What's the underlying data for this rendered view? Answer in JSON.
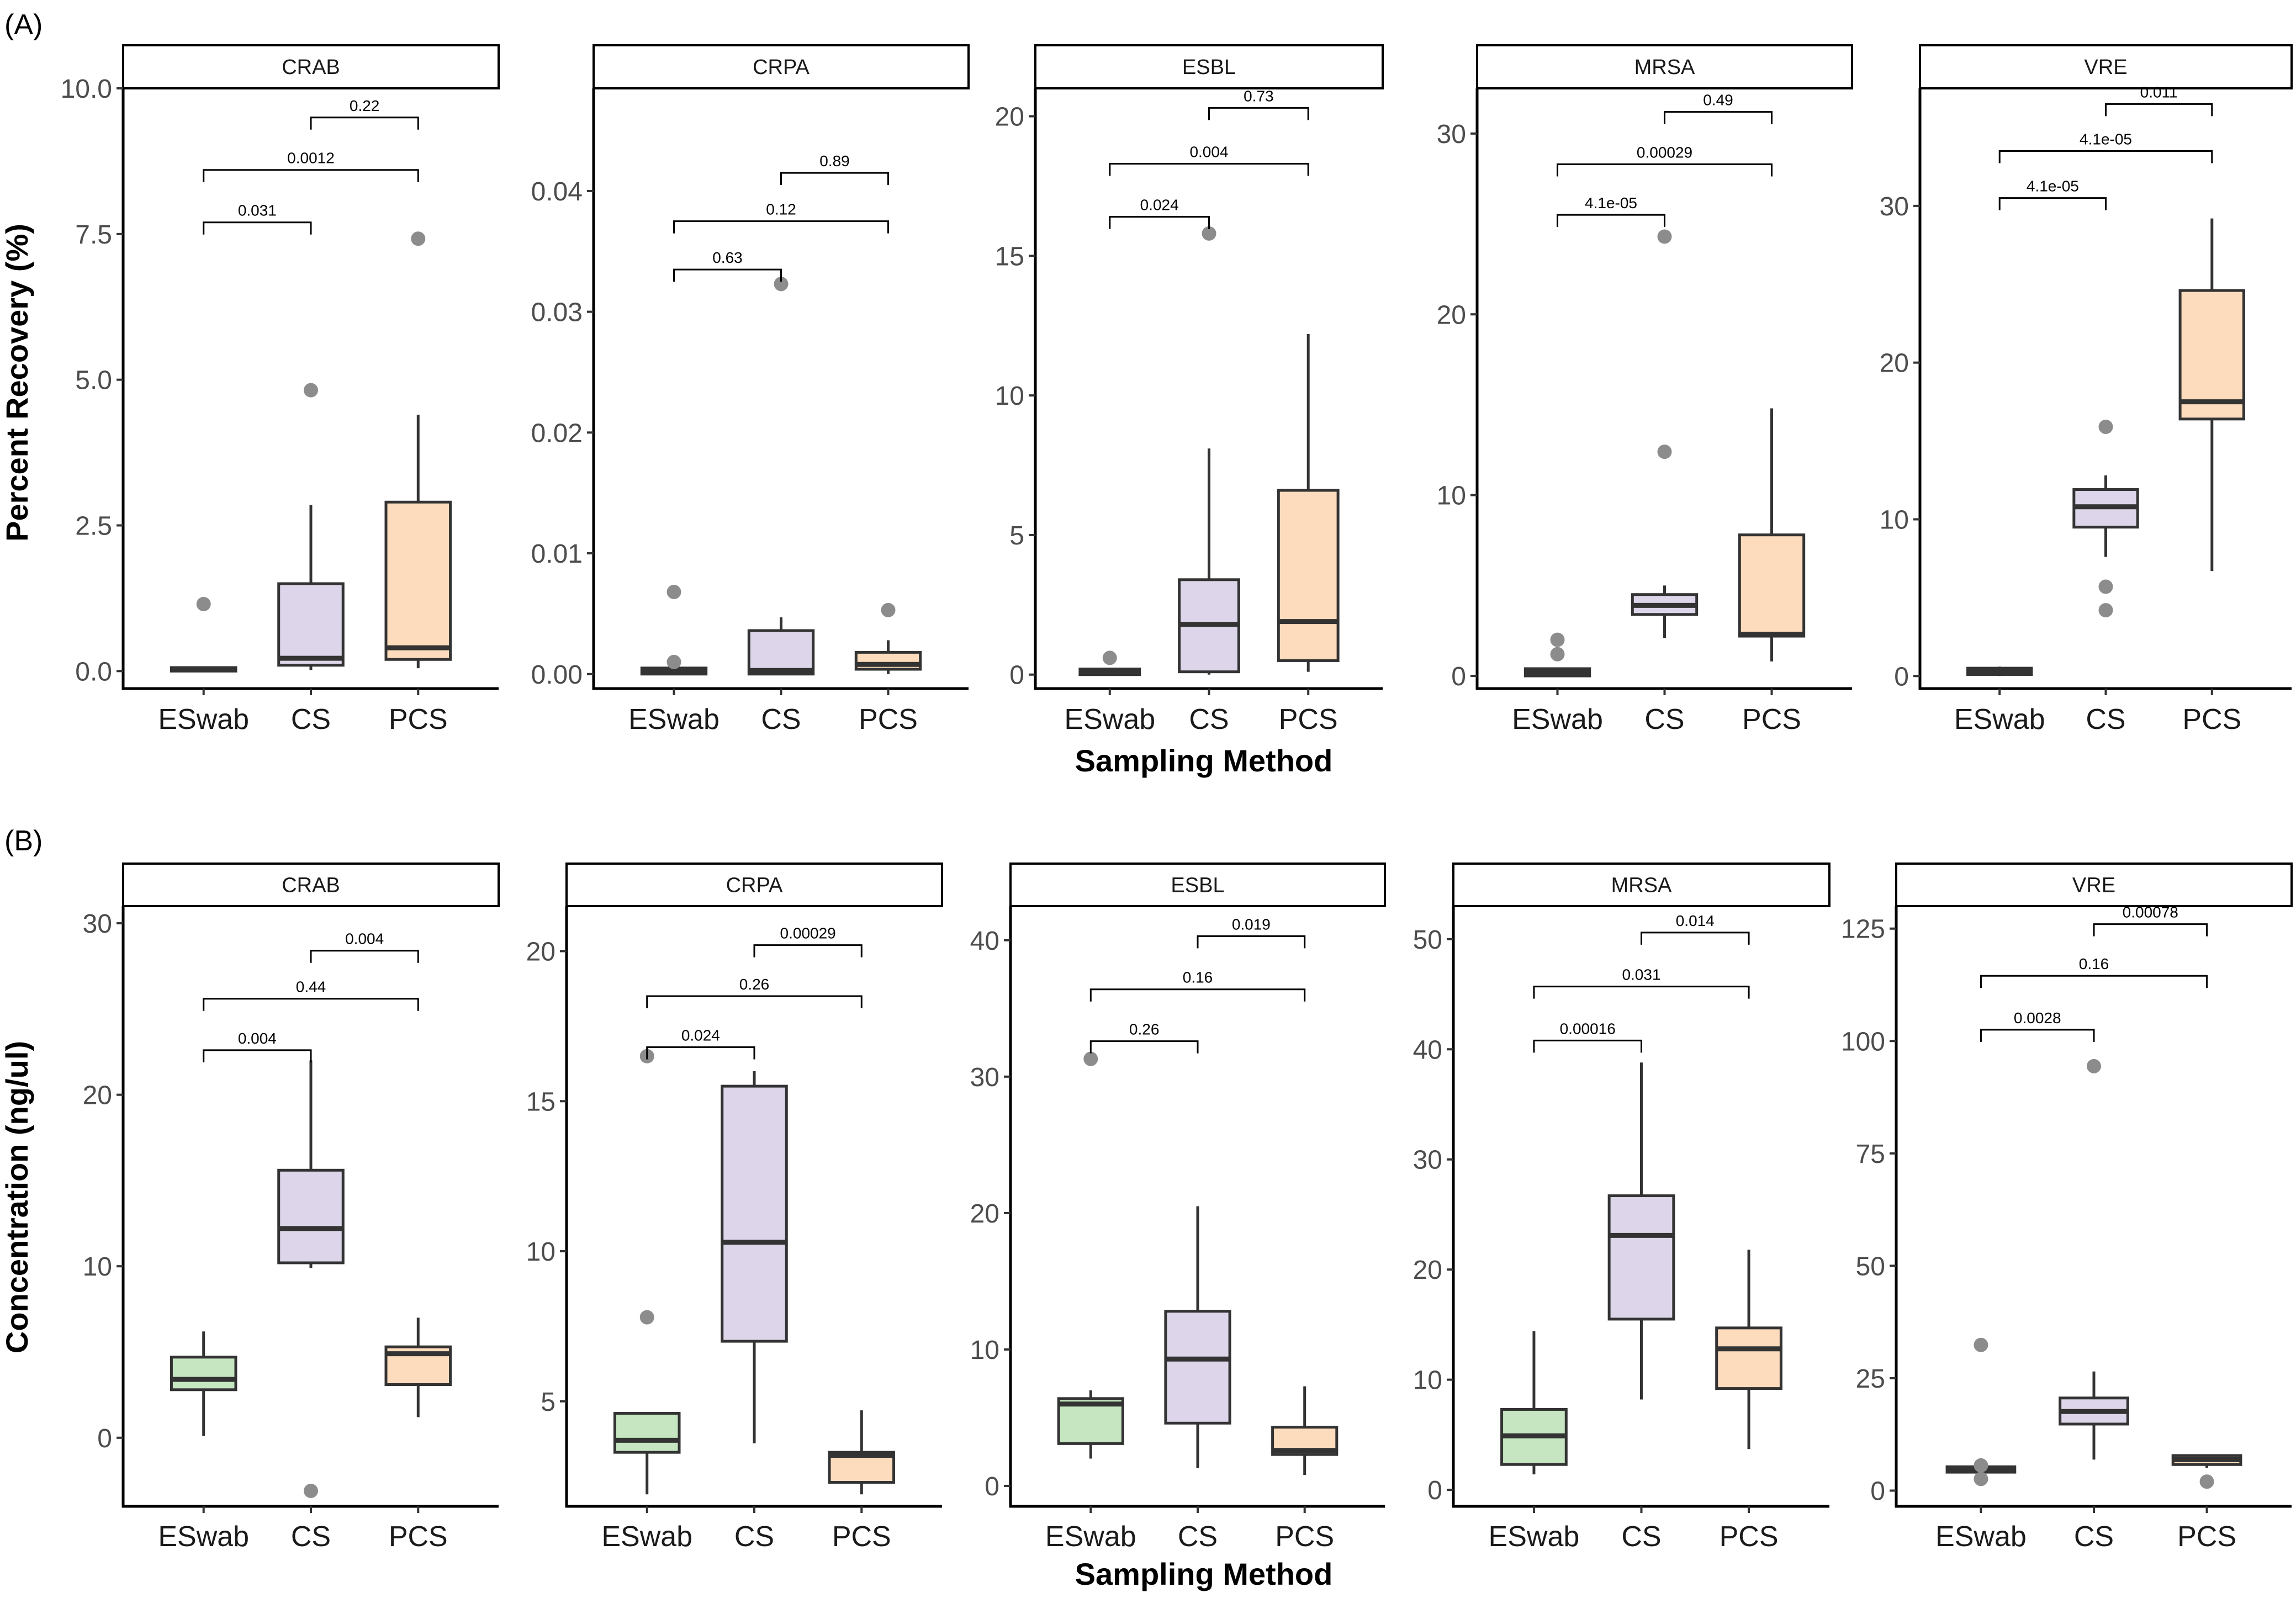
{
  "figure": {
    "sections": [
      {
        "letter": "(A)",
        "ylabel": "Percent Recovery (%)",
        "xlabel": "Sampling Method"
      },
      {
        "letter": "(B)",
        "ylabel": "Concentration (ng/ul)",
        "xlabel": "Sampling Method"
      }
    ],
    "colors": {
      "ESwab": "#c5e6c1",
      "CS": "#ddd6ea",
      "PCS": "#fddcbd",
      "outlier": "#8c8c8c",
      "line": "#333333"
    }
  },
  "chart_data": [
    {
      "type": "box",
      "section": "A",
      "facet": "CRAB",
      "categories": [
        "ESwab",
        "CS",
        "PCS"
      ],
      "ylim": [
        -0.3,
        10.0
      ],
      "yticks": [
        0.0,
        2.5,
        5.0,
        7.5,
        10.0
      ],
      "ytick_labels": [
        "0.0",
        "2.5",
        "5.0",
        "7.5",
        "10.0"
      ],
      "boxes": [
        {
          "q1": 0.0,
          "median": 0.03,
          "q3": 0.06,
          "lo": 0.0,
          "hi": 0.06,
          "outliers": [
            1.15
          ]
        },
        {
          "q1": 0.1,
          "median": 0.22,
          "q3": 1.5,
          "lo": 0.02,
          "hi": 2.85,
          "outliers": [
            4.82
          ]
        },
        {
          "q1": 0.2,
          "median": 0.4,
          "q3": 2.9,
          "lo": 0.05,
          "hi": 4.4,
          "outliers": [
            7.42
          ]
        }
      ],
      "comparisons": [
        {
          "from": 0,
          "to": 1,
          "label": "0.031",
          "y": 7.7
        },
        {
          "from": 0,
          "to": 2,
          "label": "0.0012",
          "y": 8.6
        },
        {
          "from": 1,
          "to": 2,
          "label": "0.22",
          "y": 9.5
        }
      ]
    },
    {
      "type": "box",
      "section": "A",
      "facet": "CRPA",
      "categories": [
        "ESwab",
        "CS",
        "PCS"
      ],
      "ylim": [
        -0.0012,
        0.0485
      ],
      "yticks": [
        0.0,
        0.01,
        0.02,
        0.03,
        0.04
      ],
      "ytick_labels": [
        "0.00",
        "0.01",
        "0.02",
        "0.03",
        "0.04"
      ],
      "boxes": [
        {
          "q1": 0.0,
          "median": 0.0002,
          "q3": 0.0005,
          "lo": 0.0,
          "hi": 0.0005,
          "outliers": [
            0.0068,
            0.001
          ]
        },
        {
          "q1": 0.0,
          "median": 0.0003,
          "q3": 0.0036,
          "lo": 0.0,
          "hi": 0.0047,
          "outliers": [
            0.0323
          ]
        },
        {
          "q1": 0.0004,
          "median": 0.0008,
          "q3": 0.0018,
          "lo": 0.0,
          "hi": 0.0028,
          "outliers": [
            0.0053
          ]
        }
      ],
      "comparisons": [
        {
          "from": 0,
          "to": 1,
          "label": "0.63",
          "y": 0.0335
        },
        {
          "from": 0,
          "to": 2,
          "label": "0.12",
          "y": 0.0375
        },
        {
          "from": 1,
          "to": 2,
          "label": "0.89",
          "y": 0.0415
        }
      ]
    },
    {
      "type": "box",
      "section": "A",
      "facet": "ESBL",
      "categories": [
        "ESwab",
        "CS",
        "PCS"
      ],
      "ylim": [
        -0.5,
        21.0
      ],
      "yticks": [
        0,
        5,
        10,
        15,
        20
      ],
      "ytick_labels": [
        "0",
        "5",
        "10",
        "15",
        "20"
      ],
      "boxes": [
        {
          "q1": 0.0,
          "median": 0.1,
          "q3": 0.2,
          "lo": 0.0,
          "hi": 0.2,
          "outliers": [
            0.6
          ]
        },
        {
          "q1": 0.1,
          "median": 1.8,
          "q3": 3.4,
          "lo": 0.0,
          "hi": 8.1,
          "outliers": [
            15.8
          ]
        },
        {
          "q1": 0.5,
          "median": 1.9,
          "q3": 6.6,
          "lo": 0.1,
          "hi": 12.2,
          "outliers": []
        }
      ],
      "comparisons": [
        {
          "from": 0,
          "to": 1,
          "label": "0.024",
          "y": 16.4
        },
        {
          "from": 0,
          "to": 2,
          "label": "0.004",
          "y": 18.3
        },
        {
          "from": 1,
          "to": 2,
          "label": "0.73",
          "y": 20.3
        }
      ]
    },
    {
      "type": "box",
      "section": "A",
      "facet": "MRSA",
      "categories": [
        "ESwab",
        "CS",
        "PCS"
      ],
      "ylim": [
        -0.7,
        32.5
      ],
      "yticks": [
        0,
        10,
        20,
        30
      ],
      "ytick_labels": [
        "0",
        "10",
        "20",
        "30"
      ],
      "boxes": [
        {
          "q1": 0.0,
          "median": 0.2,
          "q3": 0.4,
          "lo": 0.0,
          "hi": 0.4,
          "outliers": [
            2.0,
            1.2
          ]
        },
        {
          "q1": 3.4,
          "median": 3.9,
          "q3": 4.5,
          "lo": 2.1,
          "hi": 5.0,
          "outliers": [
            24.3,
            12.4
          ]
        },
        {
          "q1": 2.2,
          "median": 2.3,
          "q3": 7.8,
          "lo": 0.8,
          "hi": 14.8,
          "outliers": []
        }
      ],
      "comparisons": [
        {
          "from": 0,
          "to": 1,
          "label": "4.1e-05",
          "y": 25.5
        },
        {
          "from": 0,
          "to": 2,
          "label": "0.00029",
          "y": 28.3
        },
        {
          "from": 1,
          "to": 2,
          "label": "0.49",
          "y": 31.2
        }
      ]
    },
    {
      "type": "box",
      "section": "A",
      "facet": "VRE",
      "categories": [
        "ESwab",
        "CS",
        "PCS"
      ],
      "ylim": [
        -0.8,
        37.5
      ],
      "yticks": [
        0,
        10,
        20,
        30
      ],
      "ytick_labels": [
        "0",
        "10",
        "20",
        "30"
      ],
      "boxes": [
        {
          "q1": 0.1,
          "median": 0.3,
          "q3": 0.5,
          "lo": 0.0,
          "hi": 0.6,
          "outliers": []
        },
        {
          "q1": 9.5,
          "median": 10.8,
          "q3": 11.9,
          "lo": 7.6,
          "hi": 12.8,
          "outliers": [
            15.9,
            5.7,
            4.2
          ]
        },
        {
          "q1": 16.4,
          "median": 17.5,
          "q3": 24.6,
          "lo": 6.7,
          "hi": 29.2,
          "outliers": []
        }
      ],
      "comparisons": [
        {
          "from": 0,
          "to": 1,
          "label": "4.1e-05",
          "y": 30.5
        },
        {
          "from": 0,
          "to": 2,
          "label": "4.1e-05",
          "y": 33.5
        },
        {
          "from": 1,
          "to": 2,
          "label": "0.011",
          "y": 36.5
        }
      ]
    },
    {
      "type": "box",
      "section": "B",
      "facet": "CRAB",
      "categories": [
        "ESwab",
        "CS",
        "PCS"
      ],
      "ylim": [
        -4.0,
        31.0
      ],
      "yticks": [
        0,
        10,
        20,
        30
      ],
      "ytick_labels": [
        "0",
        "10",
        "20",
        "30"
      ],
      "boxes": [
        {
          "q1": 2.8,
          "median": 3.4,
          "q3": 4.7,
          "lo": 0.1,
          "hi": 6.2,
          "outliers": []
        },
        {
          "q1": 10.2,
          "median": 12.2,
          "q3": 15.6,
          "lo": 9.9,
          "hi": 22.0,
          "outliers": [
            -3.1
          ]
        },
        {
          "q1": 3.1,
          "median": 4.9,
          "q3": 5.3,
          "lo": 1.2,
          "hi": 7.0,
          "outliers": []
        }
      ],
      "comparisons": [
        {
          "from": 0,
          "to": 1,
          "label": "0.004",
          "y": 22.6
        },
        {
          "from": 0,
          "to": 2,
          "label": "0.44",
          "y": 25.6
        },
        {
          "from": 1,
          "to": 2,
          "label": "0.004",
          "y": 28.4
        }
      ]
    },
    {
      "type": "box",
      "section": "B",
      "facet": "CRPA",
      "categories": [
        "ESwab",
        "CS",
        "PCS"
      ],
      "ylim": [
        1.5,
        21.5
      ],
      "yticks": [
        5,
        10,
        15,
        20
      ],
      "ytick_labels": [
        "5",
        "10",
        "15",
        "20"
      ],
      "boxes": [
        {
          "q1": 3.3,
          "median": 3.7,
          "q3": 4.6,
          "lo": 1.9,
          "hi": 4.6,
          "outliers": [
            16.5,
            7.8
          ]
        },
        {
          "q1": 7.0,
          "median": 10.3,
          "q3": 15.5,
          "lo": 3.6,
          "hi": 16.0,
          "outliers": []
        },
        {
          "q1": 2.3,
          "median": 3.2,
          "q3": 3.3,
          "lo": 1.9,
          "hi": 4.7,
          "outliers": []
        }
      ],
      "comparisons": [
        {
          "from": 0,
          "to": 1,
          "label": "0.024",
          "y": 16.8
        },
        {
          "from": 0,
          "to": 2,
          "label": "0.26",
          "y": 18.5
        },
        {
          "from": 1,
          "to": 2,
          "label": "0.00029",
          "y": 20.2
        }
      ]
    },
    {
      "type": "box",
      "section": "B",
      "facet": "ESBL",
      "categories": [
        "ESwab",
        "CS",
        "PCS"
      ],
      "ylim": [
        -1.5,
        42.5
      ],
      "yticks": [
        0,
        10,
        20,
        30,
        40
      ],
      "ytick_labels": [
        "0",
        "10",
        "20",
        "30",
        "40"
      ],
      "boxes": [
        {
          "q1": 3.1,
          "median": 6.0,
          "q3": 6.4,
          "lo": 2.0,
          "hi": 7.0,
          "outliers": [
            31.3
          ]
        },
        {
          "q1": 4.6,
          "median": 9.3,
          "q3": 12.8,
          "lo": 1.3,
          "hi": 20.5,
          "outliers": []
        },
        {
          "q1": 2.3,
          "median": 2.6,
          "q3": 4.3,
          "lo": 0.8,
          "hi": 7.3,
          "outliers": []
        }
      ],
      "comparisons": [
        {
          "from": 0,
          "to": 1,
          "label": "0.26",
          "y": 32.6
        },
        {
          "from": 0,
          "to": 2,
          "label": "0.16",
          "y": 36.4
        },
        {
          "from": 1,
          "to": 2,
          "label": "0.019",
          "y": 40.3
        }
      ]
    },
    {
      "type": "box",
      "section": "B",
      "facet": "MRSA",
      "categories": [
        "ESwab",
        "CS",
        "PCS"
      ],
      "ylim": [
        -1.5,
        53.0
      ],
      "yticks": [
        0,
        10,
        20,
        30,
        40,
        50
      ],
      "ytick_labels": [
        "0",
        "10",
        "20",
        "30",
        "40",
        "50"
      ],
      "boxes": [
        {
          "q1": 2.3,
          "median": 4.9,
          "q3": 7.3,
          "lo": 1.4,
          "hi": 14.4,
          "outliers": []
        },
        {
          "q1": 15.5,
          "median": 23.1,
          "q3": 26.7,
          "lo": 8.2,
          "hi": 38.8,
          "outliers": []
        },
        {
          "q1": 9.2,
          "median": 12.8,
          "q3": 14.7,
          "lo": 3.7,
          "hi": 21.8,
          "outliers": []
        }
      ],
      "comparisons": [
        {
          "from": 0,
          "to": 1,
          "label": "0.00016",
          "y": 40.8
        },
        {
          "from": 0,
          "to": 2,
          "label": "0.031",
          "y": 45.7
        },
        {
          "from": 1,
          "to": 2,
          "label": "0.014",
          "y": 50.6
        }
      ]
    },
    {
      "type": "box",
      "section": "B",
      "facet": "VRE",
      "categories": [
        "ESwab",
        "CS",
        "PCS"
      ],
      "ylim": [
        -3.5,
        130.0
      ],
      "yticks": [
        0,
        25,
        50,
        75,
        100,
        125
      ],
      "ytick_labels": [
        "0",
        "25",
        "50",
        "75",
        "100",
        "125"
      ],
      "boxes": [
        {
          "q1": 4.1,
          "median": 4.7,
          "q3": 5.3,
          "lo": 4.0,
          "hi": 5.6,
          "outliers": [
            32.4,
            5.6,
            2.6
          ]
        },
        {
          "q1": 14.8,
          "median": 17.6,
          "q3": 20.6,
          "lo": 6.9,
          "hi": 26.5,
          "outliers": [
            94.4
          ]
        },
        {
          "q1": 5.8,
          "median": 6.9,
          "q3": 7.8,
          "lo": 5.0,
          "hi": 8.0,
          "outliers": [
            2.0
          ]
        }
      ],
      "comparisons": [
        {
          "from": 0,
          "to": 1,
          "label": "0.0028",
          "y": 102.5
        },
        {
          "from": 0,
          "to": 2,
          "label": "0.16",
          "y": 114.5
        },
        {
          "from": 1,
          "to": 2,
          "label": "0.00078",
          "y": 126.0
        }
      ]
    }
  ]
}
